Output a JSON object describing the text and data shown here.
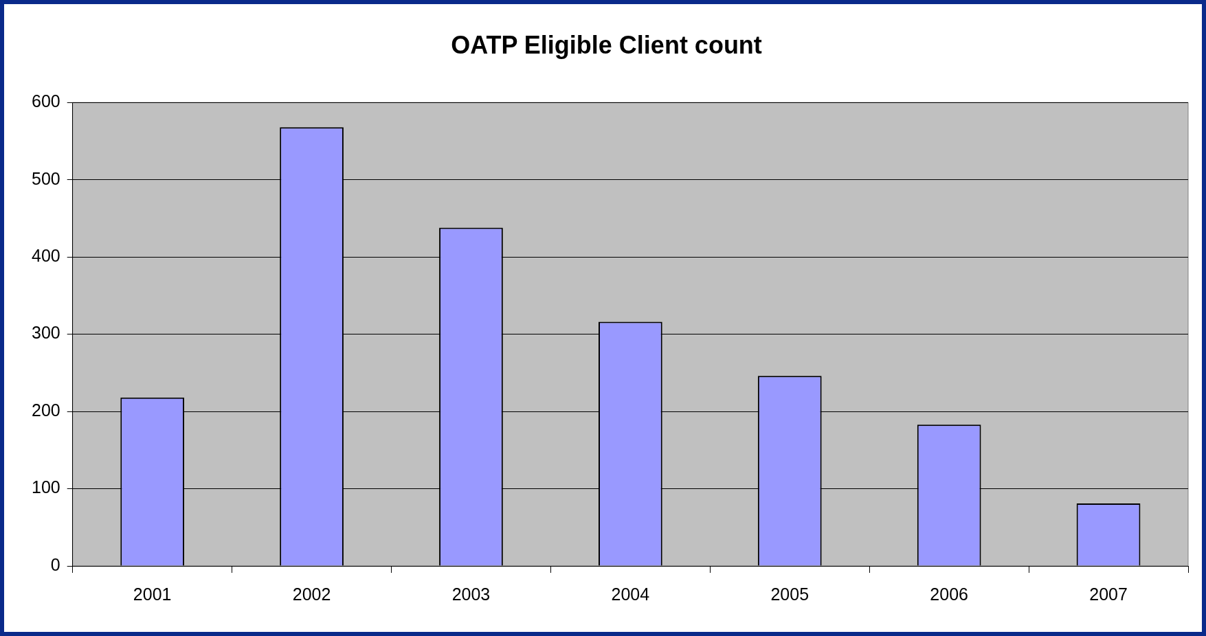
{
  "chart_data": {
    "type": "bar",
    "title": "OATP Eligible Client count",
    "categories": [
      "2001",
      "2002",
      "2003",
      "2004",
      "2005",
      "2006",
      "2007"
    ],
    "values": [
      218,
      568,
      438,
      316,
      246,
      183,
      81
    ],
    "color": "#9999ff",
    "ylim": [
      0,
      600
    ],
    "yticks": [
      0,
      100,
      200,
      300,
      400,
      500,
      600
    ],
    "grid": "y",
    "legend": false
  }
}
